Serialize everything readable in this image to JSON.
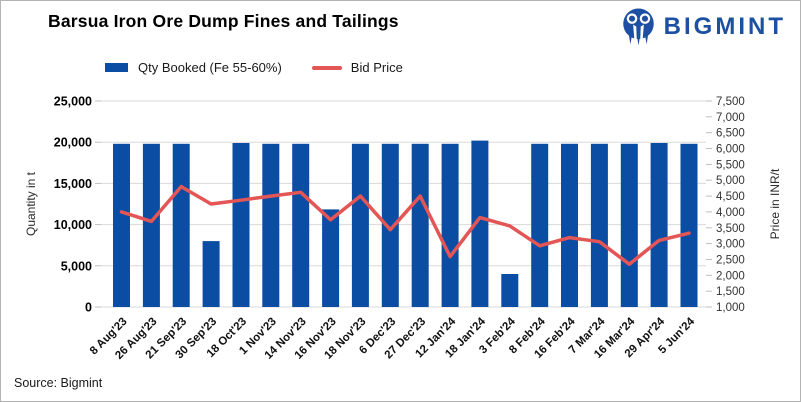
{
  "header": {
    "title": "Barsua Iron Ore Dump Fines and Tailings",
    "brand": {
      "name": "BIGMINT",
      "color": "#1d50a2",
      "icon": "bigmint-logo-mark"
    }
  },
  "legend": [
    {
      "label": "Qty Booked (Fe 55-60%)",
      "swatch": "bar",
      "color": "#0b4da2"
    },
    {
      "label": "Bid Price",
      "swatch": "line",
      "color": "#e45555"
    }
  ],
  "chart_data": {
    "type": "bar",
    "subtype": "combo-bar-line-dual-axis",
    "title": "Barsua Iron Ore Dump Fines and Tailings",
    "categories": [
      "8 Aug'23",
      "26 Aug'23",
      "21 Sep'23",
      "30 Sep'23",
      "18 Oct'23",
      "1 Nov'23",
      "14 Nov'23",
      "16 Nov'23",
      "18 Nov'23",
      "6 Dec'23",
      "27 Dec'23",
      "12 Jan'24",
      "18 Jan'24",
      "3 Feb'24",
      "8 Feb'24",
      "16 Feb'24",
      "7 Mar'24",
      "16 Mar'24",
      "29 Apr'24",
      "5 Jun'24"
    ],
    "series": [
      {
        "name": "Qty Booked (Fe 55-60%)",
        "type": "bar",
        "axis": "left",
        "color": "#0b4da2",
        "values": [
          19800,
          19800,
          19800,
          8000,
          19900,
          19800,
          19800,
          11850,
          19800,
          19800,
          19800,
          19800,
          20200,
          4000,
          19800,
          19800,
          19800,
          19800,
          19900,
          19800
        ]
      },
      {
        "name": "Bid Price",
        "type": "line",
        "axis": "right",
        "color": "#e45555",
        "values": [
          4000,
          3700,
          4800,
          4250,
          4370,
          4500,
          4620,
          3750,
          4500,
          3440,
          4500,
          2590,
          3820,
          3560,
          2930,
          3190,
          3060,
          2350,
          3100,
          3330
        ]
      }
    ],
    "left_axis": {
      "label": "Quantity in t",
      "min": 0,
      "max": 25000,
      "step": 5000
    },
    "right_axis": {
      "label": "Price in INR/t",
      "min": 1000,
      "max": 7500,
      "step": 500
    },
    "grid": "horizontal",
    "legend_position": "top",
    "x_label_rotation": 45
  },
  "footer": {
    "source": "Source: Bigmint"
  }
}
